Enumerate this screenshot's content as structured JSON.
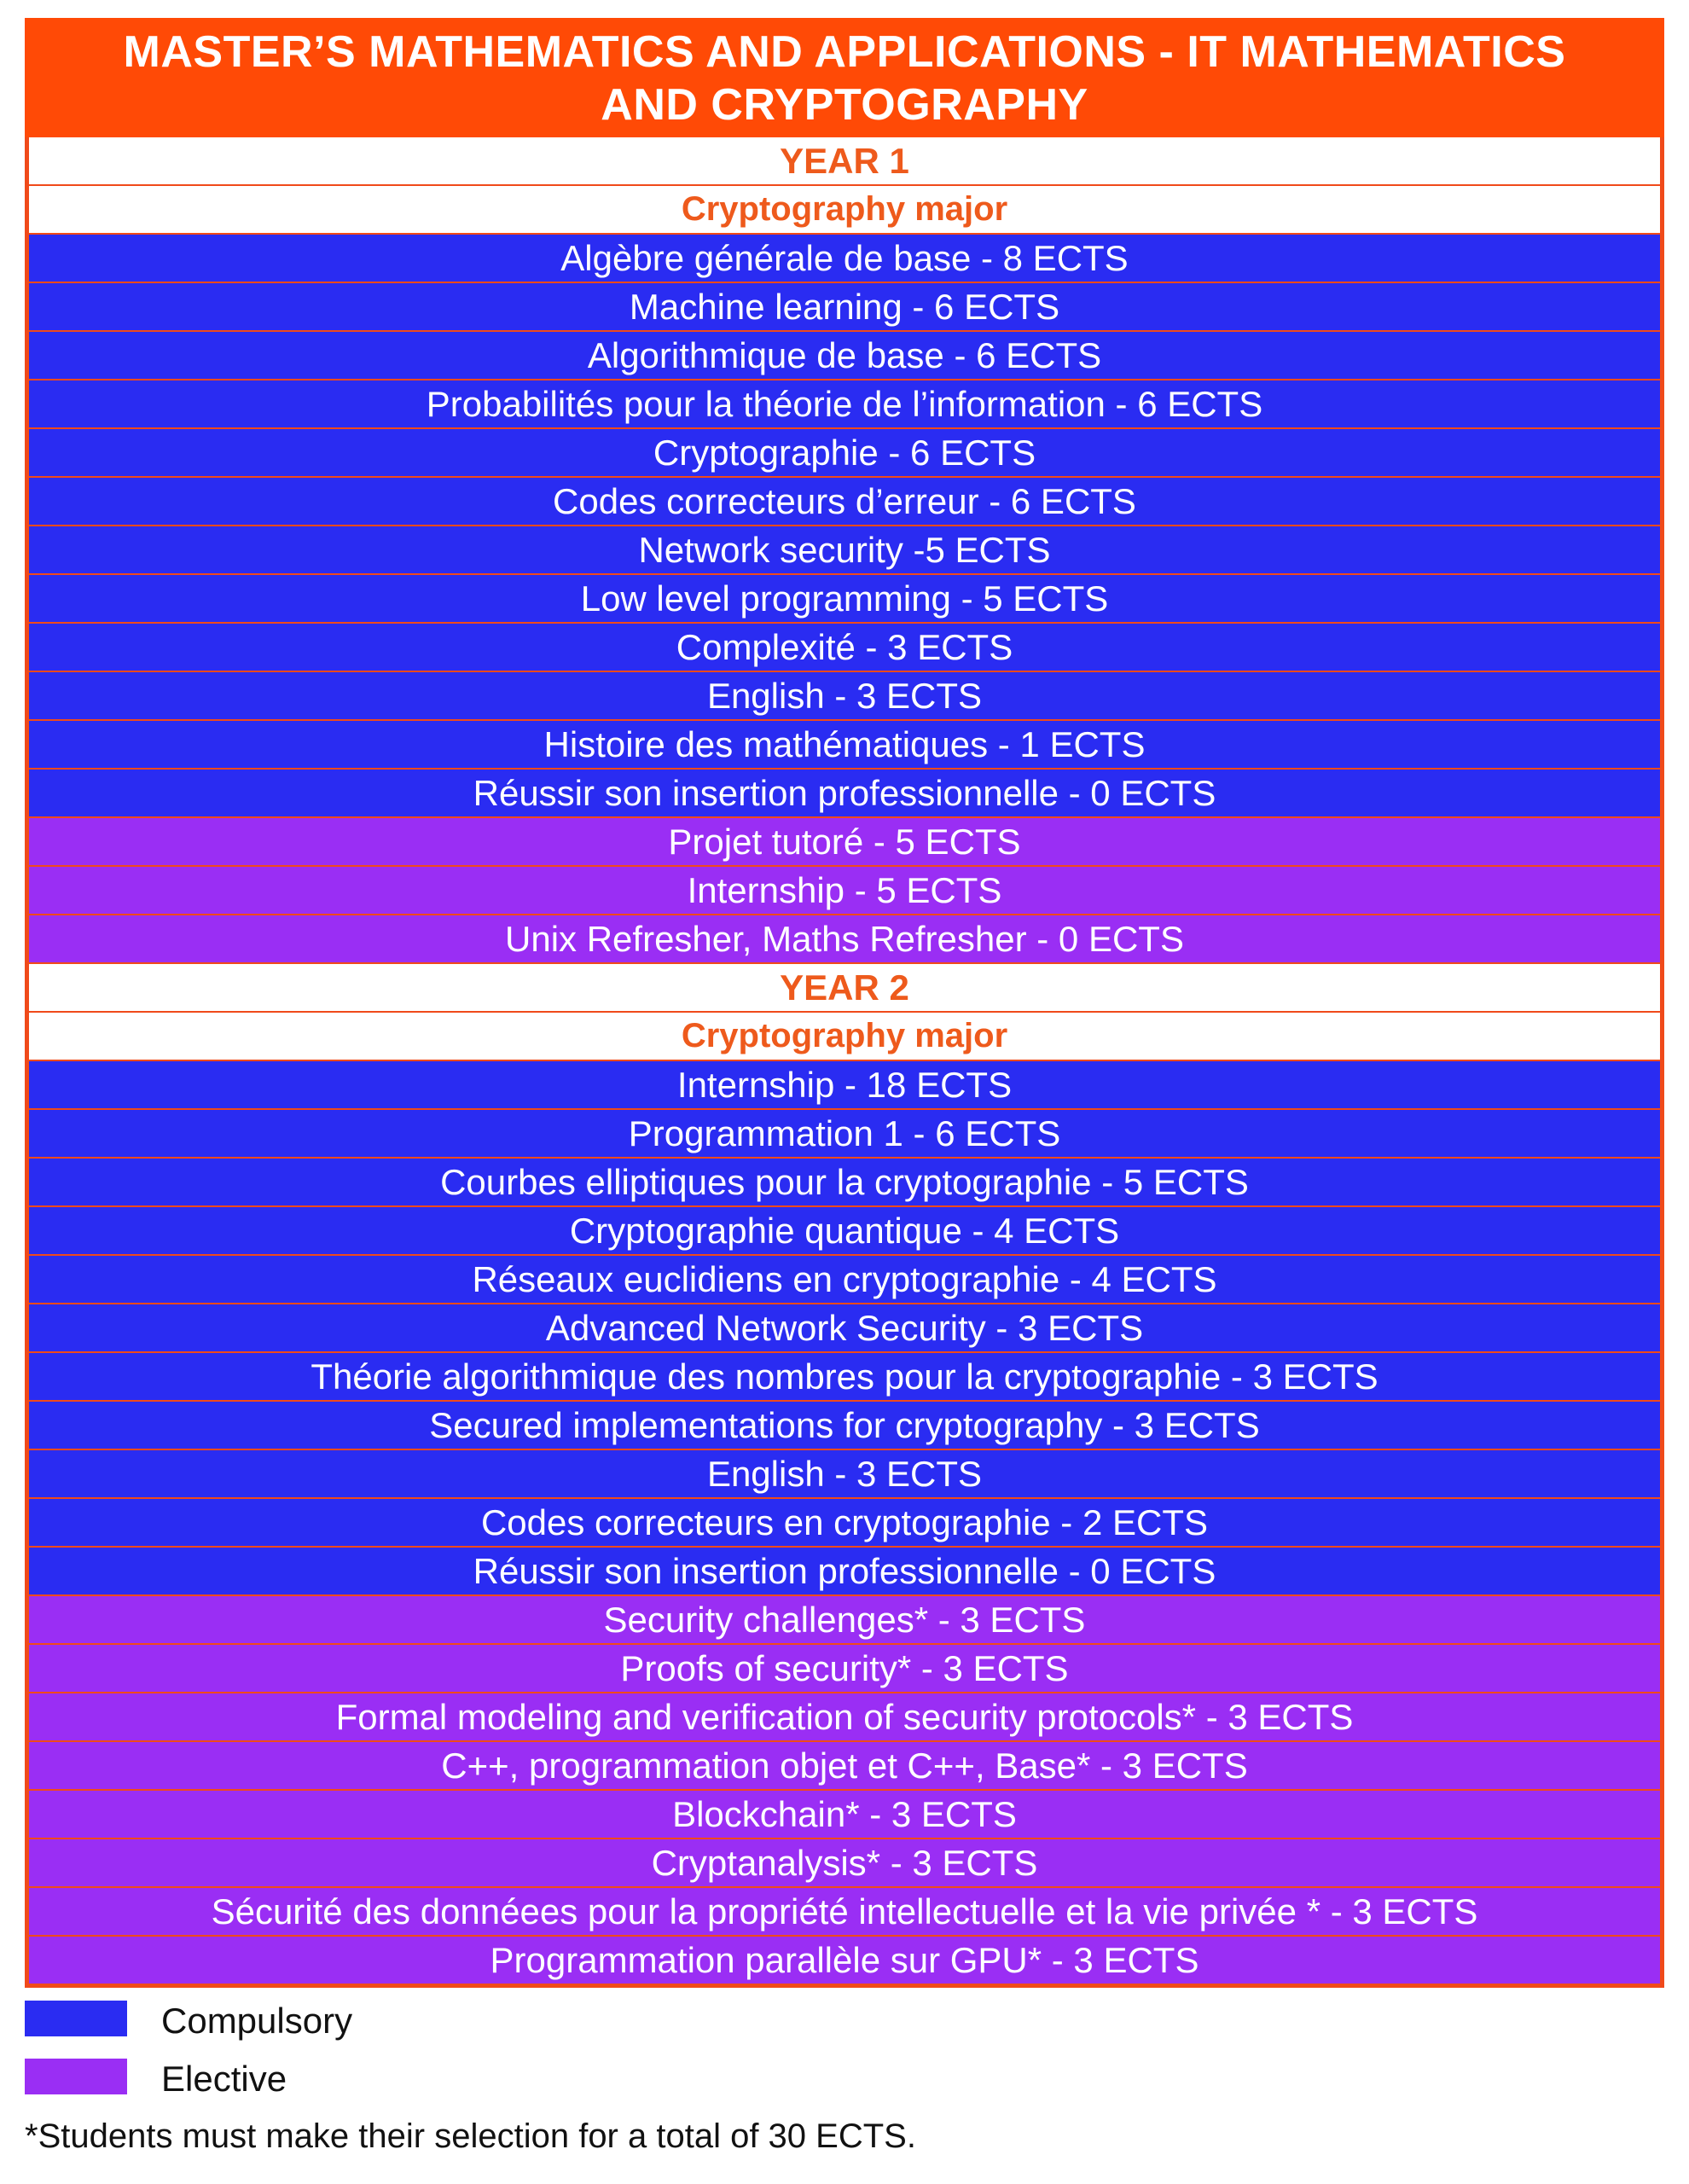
{
  "title_line1": "MASTER’S MATHEMATICS AND APPLICATIONS - IT MATHEMATICS",
  "title_line2": "AND CRYPTOGRAPHY",
  "colors": {
    "title_background": "#ff4a06",
    "header_text": "#ee5a1c",
    "compulsory": "#2a2cf2",
    "elective": "#9a2ef4"
  },
  "rows": [
    {
      "type": "header",
      "text": "YEAR 1"
    },
    {
      "type": "header",
      "text": "Cryptography major",
      "major": true
    },
    {
      "type": "compulsory",
      "text": "Algèbre générale de base - 8 ECTS"
    },
    {
      "type": "compulsory",
      "text": "Machine learning - 6 ECTS"
    },
    {
      "type": "compulsory",
      "text": "Algorithmique de base - 6 ECTS"
    },
    {
      "type": "compulsory",
      "text": "Probabilités pour la théorie de l’information - 6 ECTS"
    },
    {
      "type": "compulsory",
      "text": "Cryptographie - 6 ECTS"
    },
    {
      "type": "compulsory",
      "text": "Codes correcteurs d’erreur - 6 ECTS"
    },
    {
      "type": "compulsory",
      "text": "Network security -5 ECTS"
    },
    {
      "type": "compulsory",
      "text": "Low level programming - 5 ECTS"
    },
    {
      "type": "compulsory",
      "text": "Complexité - 3 ECTS"
    },
    {
      "type": "compulsory",
      "text": "English - 3 ECTS"
    },
    {
      "type": "compulsory",
      "text": "Histoire des mathématiques - 1 ECTS"
    },
    {
      "type": "compulsory",
      "text": "Réussir son insertion professionnelle - 0 ECTS"
    },
    {
      "type": "elective",
      "text": "Projet tutoré - 5 ECTS"
    },
    {
      "type": "elective",
      "text": "Internship - 5 ECTS"
    },
    {
      "type": "elective",
      "text": "Unix Refresher, Maths Refresher - 0 ECTS"
    },
    {
      "type": "header",
      "text": "YEAR 2"
    },
    {
      "type": "header",
      "text": "Cryptography major",
      "major": true
    },
    {
      "type": "compulsory",
      "text": "Internship - 18 ECTS"
    },
    {
      "type": "compulsory",
      "text": "Programmation 1 - 6 ECTS"
    },
    {
      "type": "compulsory",
      "text": "Courbes elliptiques pour la cryptographie - 5 ECTS"
    },
    {
      "type": "compulsory",
      "text": "Cryptographie quantique - 4 ECTS"
    },
    {
      "type": "compulsory",
      "text": "Réseaux euclidiens en cryptographie - 4 ECTS"
    },
    {
      "type": "compulsory",
      "text": "Advanced Network Security - 3 ECTS"
    },
    {
      "type": "compulsory",
      "text": "Théorie algorithmique des nombres pour la cryptographie - 3 ECTS"
    },
    {
      "type": "compulsory",
      "text": "Secured implementations for cryptography - 3 ECTS"
    },
    {
      "type": "compulsory",
      "text": "English - 3 ECTS"
    },
    {
      "type": "compulsory",
      "text": "Codes correcteurs en cryptographie - 2 ECTS"
    },
    {
      "type": "compulsory",
      "text": "Réussir son insertion professionnelle - 0 ECTS"
    },
    {
      "type": "elective",
      "text": "Security challenges* - 3 ECTS"
    },
    {
      "type": "elective",
      "text": "Proofs of security* - 3 ECTS"
    },
    {
      "type": "elective",
      "text": "Formal modeling and verification of security protocols* - 3 ECTS"
    },
    {
      "type": "elective",
      "text": "C++, programmation objet et C++, Base* - 3 ECTS"
    },
    {
      "type": "elective",
      "text": "Blockchain* - 3 ECTS"
    },
    {
      "type": "elective",
      "text": "Cryptanalysis* - 3 ECTS"
    },
    {
      "type": "elective",
      "text": "Sécurité des donnéees pour la propriété intellectuelle et la vie privée * - 3 ECTS"
    },
    {
      "type": "elective",
      "text": "Programmation parallèle sur GPU* - 3 ECTS"
    }
  ],
  "legend": {
    "compulsory_label": "Compulsory",
    "elective_label": "Elective"
  },
  "footnote": "*Students must make their selection for a total of 30 ECTS."
}
